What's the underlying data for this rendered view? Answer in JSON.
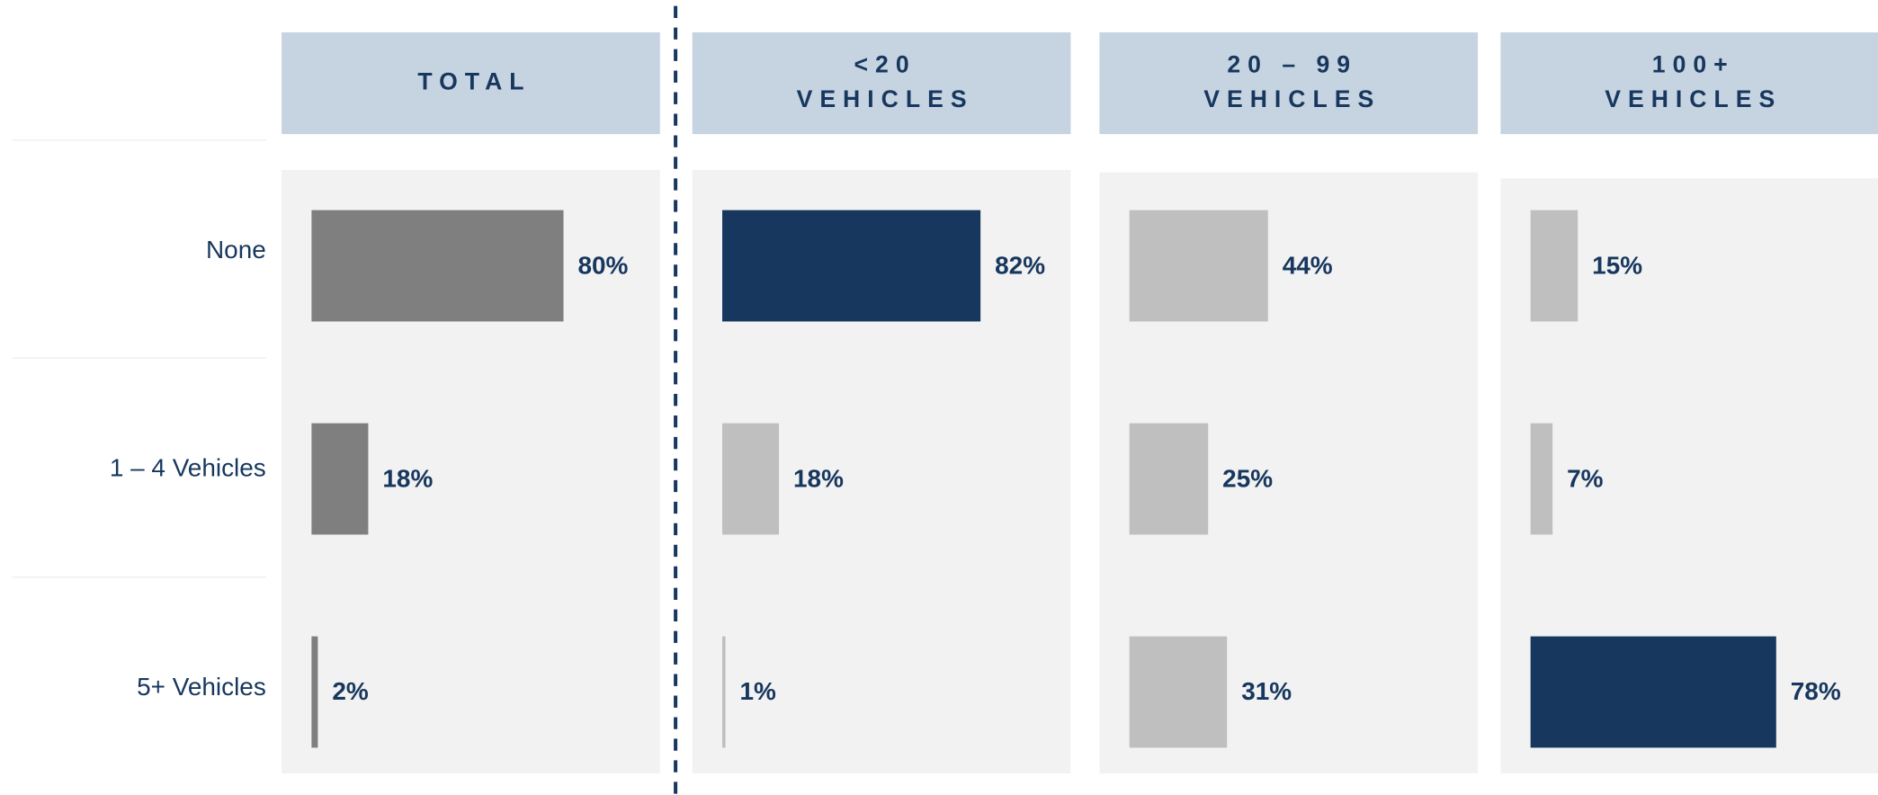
{
  "chart_data": [
    {
      "type": "bar",
      "title": [
        "TOTAL"
      ],
      "categories": [
        "None",
        "1 – 4 Vehicles",
        "5+ Vehicles"
      ],
      "values": [
        80,
        18,
        2
      ],
      "value_labels": [
        "80%",
        "18%",
        "2%"
      ],
      "colors": [
        "#7f7f7f",
        "#7f7f7f",
        "#7f7f7f"
      ]
    },
    {
      "type": "bar",
      "title": [
        "<20",
        "VEHICLES"
      ],
      "values": [
        82,
        18,
        1
      ],
      "value_labels": [
        "82%",
        "18%",
        "1%"
      ],
      "colors": [
        "#17375e",
        "#bfbfbf",
        "#bfbfbf"
      ]
    },
    {
      "type": "bar",
      "title": [
        "20 – 99",
        "VEHICLES"
      ],
      "values": [
        44,
        25,
        31
      ],
      "value_labels": [
        "44%",
        "25%",
        "31%"
      ],
      "colors": [
        "#bfbfbf",
        "#bfbfbf",
        "#bfbfbf"
      ]
    },
    {
      "type": "bar",
      "title": [
        "100+",
        "VEHICLES"
      ],
      "values": [
        15,
        7,
        78
      ],
      "value_labels": [
        "15%",
        "7%",
        "78%"
      ],
      "colors": [
        "#bfbfbf",
        "#bfbfbf",
        "#17375e"
      ]
    }
  ]
}
